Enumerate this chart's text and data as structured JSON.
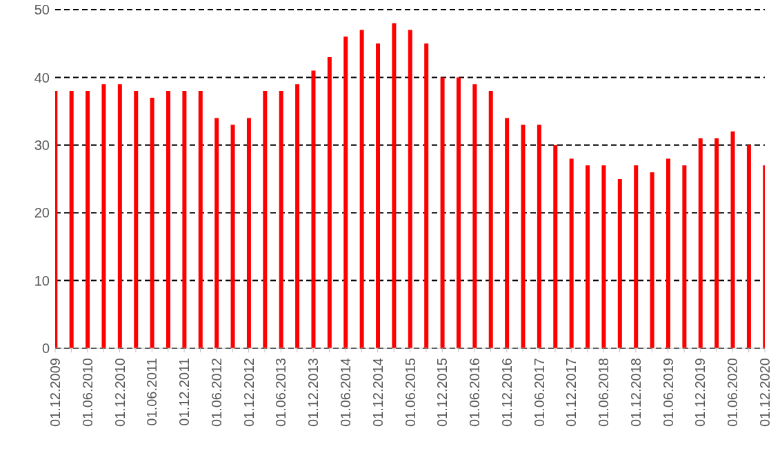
{
  "chart_data": {
    "type": "bar",
    "categories": [
      "01.12.2009",
      null,
      "01.06.2010",
      null,
      "01.12.2010",
      null,
      "01.06.2011",
      null,
      "01.12.2011",
      null,
      "01.06.2012",
      null,
      "01.12.2012",
      null,
      "01.06.2013",
      null,
      "01.12.2013",
      null,
      "01.06.2014",
      null,
      "01.12.2014",
      null,
      "01.06.2015",
      null,
      "01.12.2015",
      null,
      "01.06.2016",
      null,
      "01.12.2016",
      null,
      "01.06.2017",
      null,
      "01.12.2017",
      null,
      "01.06.2018",
      null,
      "01.12.2018",
      null,
      "01.06.2019",
      null,
      "01.12.2019",
      null,
      "01.06.2020",
      null,
      "01.12.2020"
    ],
    "values": [
      38,
      38,
      38,
      39,
      39,
      38,
      37,
      38,
      38,
      38,
      34,
      33,
      34,
      38,
      38,
      39,
      41,
      43,
      46,
      47,
      45,
      48,
      47,
      45,
      40,
      40,
      39,
      38,
      34,
      33,
      33,
      30,
      28,
      27,
      27,
      25,
      27,
      26,
      28,
      27,
      31,
      31,
      32,
      30,
      27
    ],
    "color": "#ff0000",
    "ylim": [
      0,
      50
    ],
    "yticks": [
      0,
      10,
      20,
      30,
      40,
      50
    ],
    "grid": "y"
  }
}
